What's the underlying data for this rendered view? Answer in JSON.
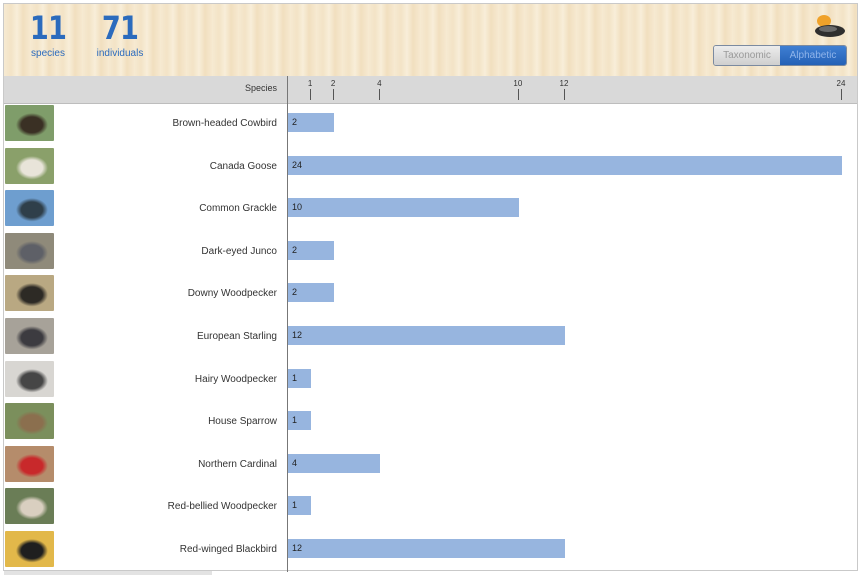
{
  "summary": {
    "species_count": "11",
    "species_label": "species",
    "individuals_count": "71",
    "individuals_label": "individuals"
  },
  "sort_toggle": {
    "taxonomic_label": "Taxonomic",
    "alphabetic_label": "Alphabetic",
    "selected": "Alphabetic"
  },
  "colors": {
    "bar": "#97b5df",
    "accent": "#2b6bbd"
  },
  "chart_data": {
    "type": "bar",
    "orientation": "horizontal",
    "category_header": "Species",
    "categories": [
      "Brown-headed Cowbird",
      "Canada Goose",
      "Common Grackle",
      "Dark-eyed Junco",
      "Downy Woodpecker",
      "European Starling",
      "Hairy Woodpecker",
      "House Sparrow",
      "Northern Cardinal",
      "Red-bellied Woodpecker",
      "Red-winged Blackbird"
    ],
    "values": [
      2,
      24,
      10,
      2,
      2,
      12,
      1,
      1,
      4,
      1,
      12
    ],
    "xticks": [
      1,
      2,
      4,
      10,
      12,
      24
    ],
    "xlim": [
      0,
      24
    ]
  }
}
